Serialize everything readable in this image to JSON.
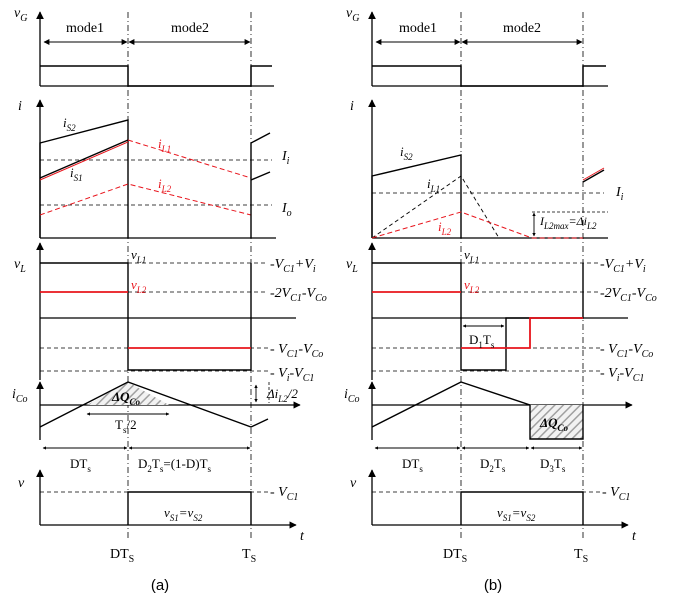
{
  "colors": {
    "black": "#000000",
    "red": "#e8141c",
    "hatch": "#bdbdbd"
  },
  "a": {
    "caption": "(a)",
    "mode1": "mode1",
    "mode2": "mode2",
    "vG": "v",
    "vG_sub": "G",
    "i": "i",
    "iS2": "i",
    "iS2_sub": "S2",
    "iS1": "i",
    "iS1_sub": "S1",
    "iL1": "i",
    "iL1_sub": "L1",
    "iL2": "i",
    "iL2_sub": "L2",
    "Ii": "I",
    "Ii_sub": "i",
    "Io": "I",
    "Io_sub": "o",
    "vL": "v",
    "vL_sub": "L",
    "vL1": "v",
    "vL1_sub": "L1",
    "vL2": "v",
    "vL2_sub": "L2",
    "lv1_a": "V",
    "lv1_a_sub": "C1",
    "lv1_b": "+V",
    "lv1_b_sub": "i",
    "lv2_a": "-2V",
    "lv2_a_sub": "C1",
    "lv2_b": "-V",
    "lv2_b_sub": "Co",
    "lv3_a": "V",
    "lv3_a_sub": "C1",
    "lv3_b": "-V",
    "lv3_b_sub": "Co",
    "lv4_a": "V",
    "lv4_a_sub": "i",
    "lv4_b": "-V",
    "lv4_b_sub": "C1",
    "iCo": "i",
    "iCo_sub": "Co",
    "dQ": "ΔQ",
    "dQ_sub": "Co",
    "diL2_a": "Δi",
    "diL2_sub": "L2",
    "diL2_b": "/2",
    "Ts2_a": "T",
    "Ts2_sub": "s",
    "Ts2_b": "/2",
    "DTs_a": "DT",
    "DTs_sub": "s",
    "D2Ts_a": "D",
    "D2Ts_sub": "2",
    "D2Ts_b": "T",
    "D2Ts_sub2": "s",
    "D2Ts_c": "=(1-D)T",
    "D2Ts_sub3": "s",
    "v": "v",
    "VC1": "V",
    "VC1_sub": "C1",
    "vS": "v",
    "vS_sub": "S1",
    "vS_b": "=v",
    "vS_sub2": "S2",
    "t": "t",
    "xDT": "DT",
    "xDT_sub": "S",
    "xT": "T",
    "xT_sub": "S"
  },
  "b": {
    "caption": "(b)",
    "mode1": "mode1",
    "mode2": "mode2",
    "vG": "v",
    "vG_sub": "G",
    "i": "i",
    "iS2": "i",
    "iS2_sub": "S2",
    "iL1": "i",
    "iL1_sub": "L1",
    "iL2": "i",
    "iL2_sub": "L2",
    "Ii": "I",
    "Ii_sub": "i",
    "IL2max_a": "I",
    "IL2max_sub": "L2max",
    "IL2max_b": "=Δi",
    "IL2max_sub2": "L2",
    "vL": "v",
    "vL_sub": "L",
    "vL1": "v",
    "vL1_sub": "L1",
    "vL2": "v",
    "vL2_sub": "L2",
    "D1Ts_a": "D",
    "D1Ts_sub": "1",
    "D1Ts_b": "T",
    "D1Ts_sub2": "s",
    "lv1_a": "V",
    "lv1_a_sub": "C1",
    "lv1_b": "+V",
    "lv1_b_sub": "i",
    "lv2_a": "-2V",
    "lv2_a_sub": "C1",
    "lv2_b": "-V",
    "lv2_b_sub": "Co",
    "lv3_a": "V",
    "lv3_a_sub": "C1",
    "lv3_b": "-V",
    "lv3_b_sub": "Co",
    "lv4_a": "V",
    "lv4_a_sub": "i",
    "lv4_b": "-V",
    "lv4_b_sub": "C1",
    "iCo": "i",
    "iCo_sub": "Co",
    "dQ": "ΔQ",
    "dQ_sub": "Co",
    "DTs_a": "DT",
    "DTs_sub": "s",
    "D2Ts_a": "D",
    "D2Ts_sub": "2",
    "D2Ts_b": "T",
    "D2Ts_sub2": "s",
    "D3Ts_a": "D",
    "D3Ts_sub": "3",
    "D3Ts_b": "T",
    "D3Ts_sub2": "s",
    "v": "v",
    "VC1": "V",
    "VC1_sub": "C1",
    "vS": "v",
    "vS_sub": "S1",
    "vS_b": "=v",
    "vS_sub2": "S2",
    "t": "t",
    "xDT": "DT",
    "xDT_sub": "S",
    "xT": "T",
    "xT_sub": "S"
  }
}
